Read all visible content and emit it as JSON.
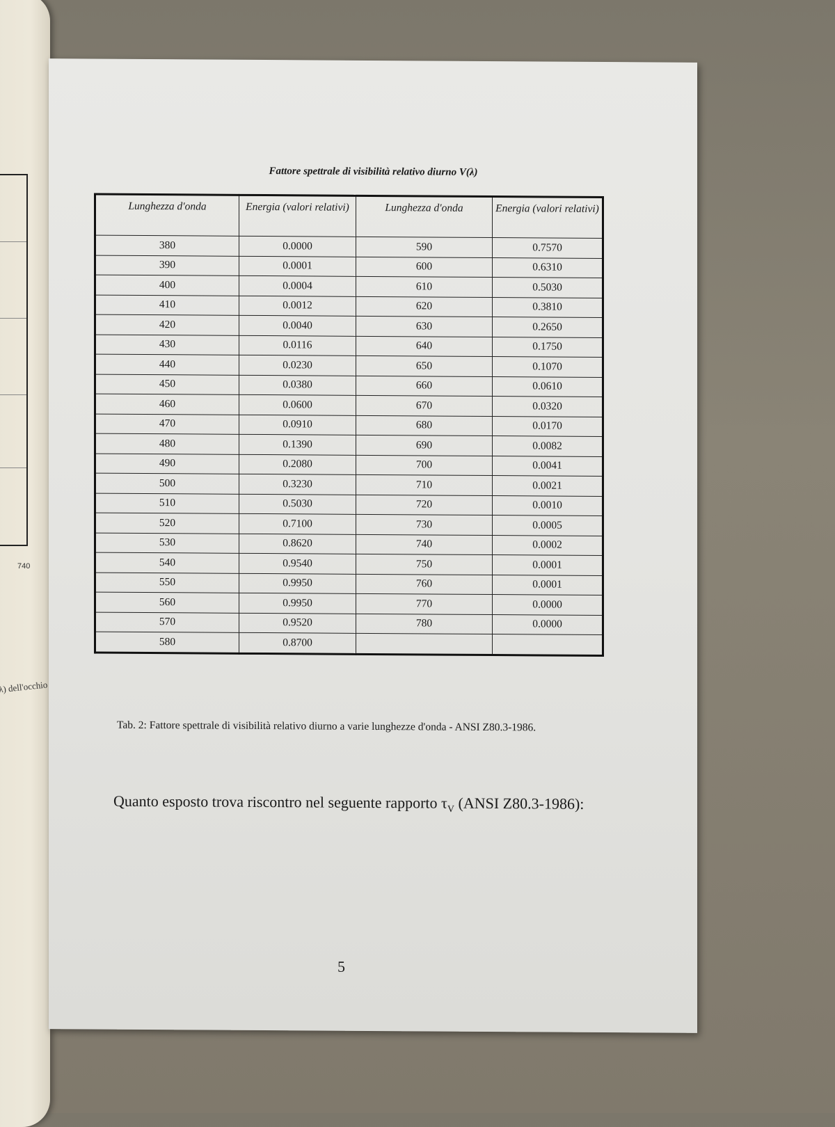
{
  "left_page": {
    "tick_label": "740",
    "fragment": "λ) dell'occhio"
  },
  "table_title": "Fattore  spettrale di visibilità relativo diurno V(λ)",
  "headers": [
    "Lunghezza d'onda",
    "Energia (valori relativi)",
    "Lunghezza d'onda",
    "Energia (valori relativi)"
  ],
  "rows": [
    [
      "380",
      "0.0000",
      "590",
      "0.7570"
    ],
    [
      "390",
      "0.0001",
      "600",
      "0.6310"
    ],
    [
      "400",
      "0.0004",
      "610",
      "0.5030"
    ],
    [
      "410",
      "0.0012",
      "620",
      "0.3810"
    ],
    [
      "420",
      "0.0040",
      "630",
      "0.2650"
    ],
    [
      "430",
      "0.0116",
      "640",
      "0.1750"
    ],
    [
      "440",
      "0.0230",
      "650",
      "0.1070"
    ],
    [
      "450",
      "0.0380",
      "660",
      "0.0610"
    ],
    [
      "460",
      "0.0600",
      "670",
      "0.0320"
    ],
    [
      "470",
      "0.0910",
      "680",
      "0.0170"
    ],
    [
      "480",
      "0.1390",
      "690",
      "0.0082"
    ],
    [
      "490",
      "0.2080",
      "700",
      "0.0041"
    ],
    [
      "500",
      "0.3230",
      "710",
      "0.0021"
    ],
    [
      "510",
      "0.5030",
      "720",
      "0.0010"
    ],
    [
      "520",
      "0.7100",
      "730",
      "0.0005"
    ],
    [
      "530",
      "0.8620",
      "740",
      "0.0002"
    ],
    [
      "540",
      "0.9540",
      "750",
      "0.0001"
    ],
    [
      "550",
      "0.9950",
      "760",
      "0.0001"
    ],
    [
      "560",
      "0.9950",
      "770",
      "0.0000"
    ],
    [
      "570",
      "0.9520",
      "780",
      "0.0000"
    ],
    [
      "580",
      "0.8700",
      "",
      ""
    ]
  ],
  "caption": "Tab. 2: Fattore spettrale di visibilità relativo diurno a varie lunghezze d'onda - ANSI Z80.3-1986.",
  "body_text": {
    "before": "Quanto esposto trova riscontro nel seguente rapporto τ",
    "subscript": "V",
    "after": " (ANSI Z80.3-1986):"
  },
  "page_number": "5"
}
